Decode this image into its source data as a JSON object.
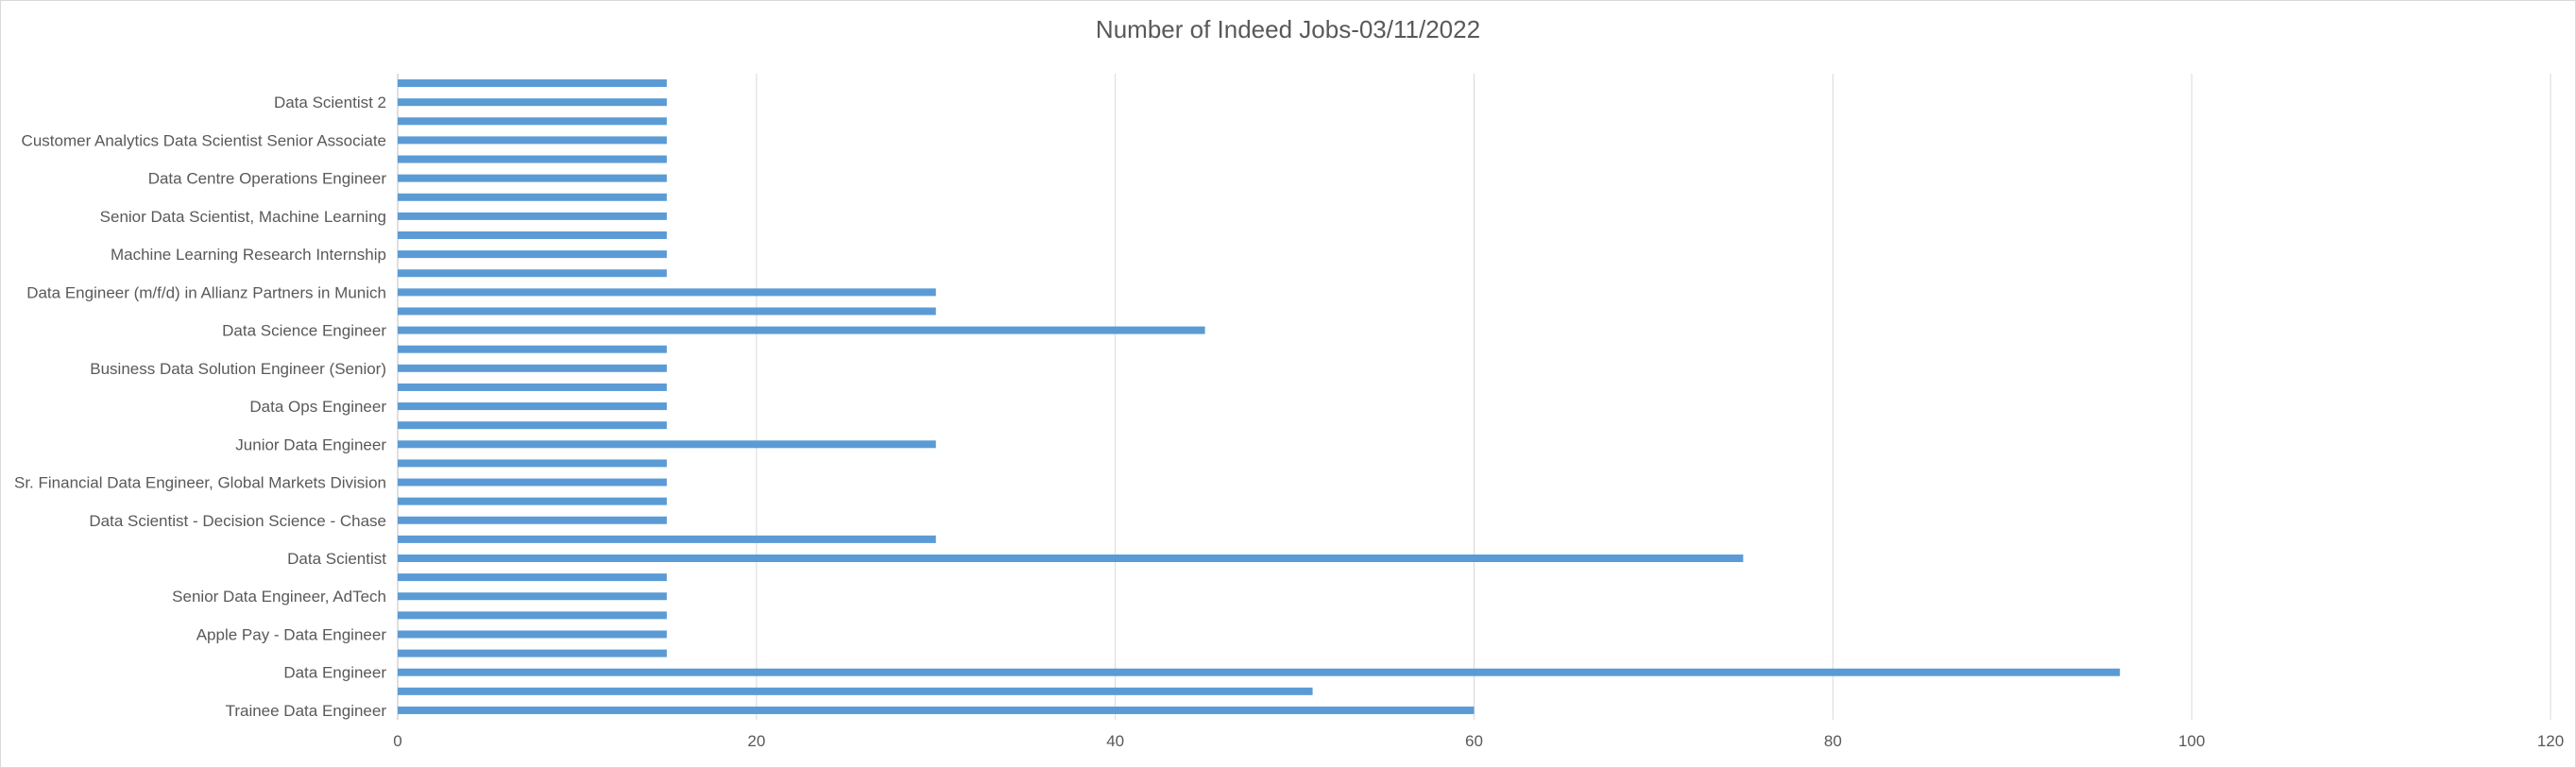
{
  "chart_data": {
    "type": "bar",
    "orientation": "horizontal",
    "title": "Number of Indeed Jobs-03/11/2022",
    "xlabel": "",
    "ylabel": "",
    "xlim": [
      0,
      120
    ],
    "xticks": [
      0,
      20,
      40,
      60,
      80,
      100,
      120
    ],
    "grid": true,
    "legend": "none",
    "bar_color": "#5b9bd5",
    "grid_color": "#d9d9d9",
    "categories": [
      "Trainee Data Engineer",
      "",
      "Data Engineer",
      "",
      "Apple Pay - Data Engineer",
      "",
      "Senior Data Engineer, AdTech",
      "",
      "Data Scientist",
      "",
      "Data Scientist - Decision Science - Chase",
      "",
      "Sr. Financial Data Engineer, Global Markets Division",
      "",
      "Junior Data Engineer",
      "",
      "Data Ops Engineer",
      "",
      "Business Data Solution Engineer (Senior)",
      "",
      "Data Science Engineer",
      "",
      "Data Engineer (m/f/d) in Allianz Partners in Munich",
      "",
      "Machine Learning Research Internship",
      "",
      "Senior Data Scientist, Machine Learning",
      "",
      "Data Centre Operations Engineer",
      "",
      "Customer Analytics Data Scientist Senior Associate",
      "",
      "Data Scientist 2",
      ""
    ],
    "values": [
      60,
      51,
      96,
      15,
      15,
      15,
      15,
      15,
      75,
      30,
      15,
      15,
      15,
      15,
      30,
      15,
      15,
      15,
      15,
      15,
      45,
      30,
      30,
      15,
      15,
      15,
      15,
      15,
      15,
      15,
      15,
      15,
      15,
      15
    ]
  }
}
